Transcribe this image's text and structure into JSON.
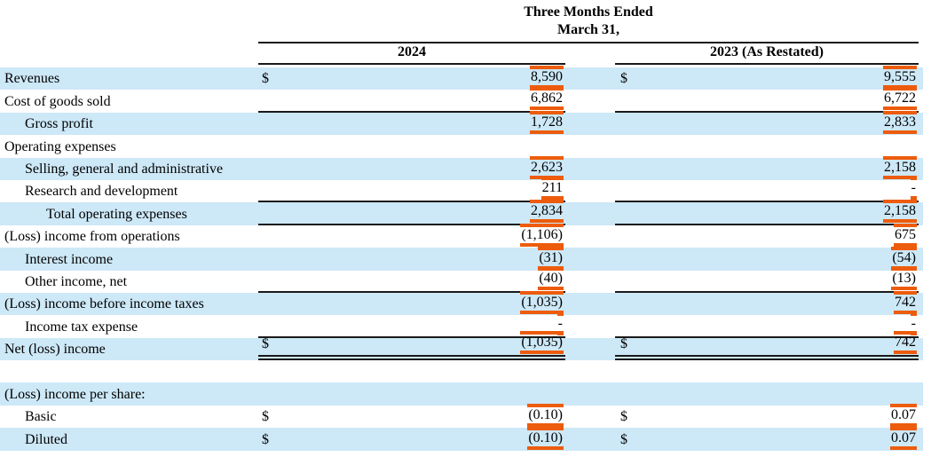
{
  "header": {
    "period_line1": "Three Months Ended",
    "period_line2": "March 31,",
    "col1": "2024",
    "col2": "2023 (As Restated)"
  },
  "colors": {
    "row_highlight": "#cde8f7",
    "annotation_mark": "#ed5c0c",
    "rule_line": "#1a1a1a"
  },
  "rows": [
    {
      "label": "Revenues",
      "indent": 0,
      "shaded": true,
      "cur1": "$",
      "val1": "8,590",
      "cur2": "$",
      "val2": "9,555",
      "rule": "none"
    },
    {
      "label": "Cost of goods sold",
      "indent": 0,
      "shaded": false,
      "cur1": "",
      "val1": "6,862",
      "cur2": "",
      "val2": "6,722",
      "rule": "single"
    },
    {
      "label": "Gross profit",
      "indent": 1,
      "shaded": true,
      "cur1": "",
      "val1": "1,728",
      "cur2": "",
      "val2": "2,833",
      "rule": "none"
    },
    {
      "label": "Operating expenses",
      "indent": 0,
      "shaded": false,
      "cur1": "",
      "val1": "",
      "cur2": "",
      "val2": "",
      "rule": "none"
    },
    {
      "label": "Selling, general and administrative",
      "indent": 1,
      "shaded": true,
      "cur1": "",
      "val1": "2,623",
      "cur2": "",
      "val2": "2,158",
      "rule": "none"
    },
    {
      "label": "Research and development",
      "indent": 1,
      "shaded": false,
      "cur1": "",
      "val1": "211",
      "cur2": "",
      "val2": "-",
      "rule": "single"
    },
    {
      "label": "Total operating expenses",
      "indent": 2,
      "shaded": true,
      "cur1": "",
      "val1": "2,834",
      "cur2": "",
      "val2": "2,158",
      "rule": "single"
    },
    {
      "label": "(Loss) income from operations",
      "indent": 0,
      "shaded": false,
      "cur1": "",
      "val1": "(1,106)",
      "cur2": "",
      "val2": "675",
      "rule": "none"
    },
    {
      "label": "Interest income",
      "indent": 1,
      "shaded": true,
      "cur1": "",
      "val1": "(31)",
      "cur2": "",
      "val2": "(54)",
      "rule": "none"
    },
    {
      "label": "Other income, net",
      "indent": 1,
      "shaded": false,
      "cur1": "",
      "val1": "(40)",
      "cur2": "",
      "val2": "(13)",
      "rule": "single"
    },
    {
      "label": "(Loss) income before income taxes",
      "indent": 0,
      "shaded": true,
      "cur1": "",
      "val1": "(1,035)",
      "cur2": "",
      "val2": "742",
      "rule": "none"
    },
    {
      "label": "Income tax expense",
      "indent": 1,
      "shaded": false,
      "cur1": "",
      "val1": "-",
      "cur2": "",
      "val2": "-",
      "rule": "single"
    },
    {
      "label": "Net (loss) income",
      "indent": 0,
      "shaded": true,
      "cur1": "$",
      "val1": "(1,035)",
      "cur2": "$",
      "val2": "742",
      "rule": "double"
    },
    {
      "label": "",
      "indent": 0,
      "shaded": false,
      "cur1": "",
      "val1": "",
      "cur2": "",
      "val2": "",
      "rule": "none"
    },
    {
      "label": "(Loss) income per share:",
      "indent": 0,
      "shaded": true,
      "cur1": "",
      "val1": "",
      "cur2": "",
      "val2": "",
      "rule": "none"
    },
    {
      "label": "Basic",
      "indent": 1,
      "shaded": false,
      "cur1": "$",
      "val1": "(0.10)",
      "cur2": "$",
      "val2": "0.07",
      "rule": "none"
    },
    {
      "label": "Diluted",
      "indent": 1,
      "shaded": true,
      "cur1": "$",
      "val1": "(0.10)",
      "cur2": "$",
      "val2": "0.07",
      "rule": "none"
    }
  ]
}
